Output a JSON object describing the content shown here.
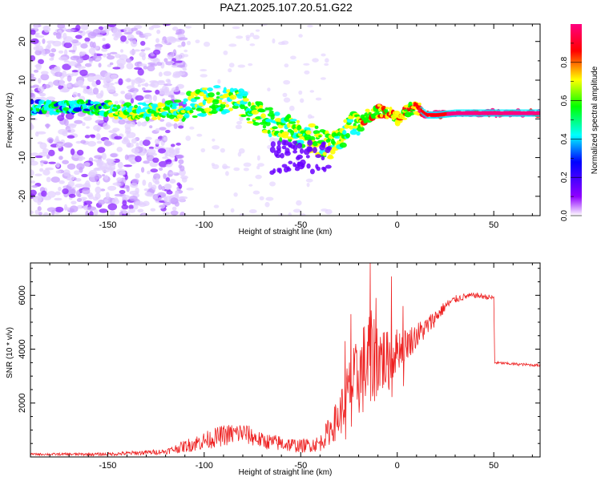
{
  "chart_data": [
    {
      "type": "heatmap",
      "title": "PAZ1.2025.107.20.51.G22",
      "xlabel": "Height of straight line (km)",
      "ylabel": "Frequency (Hz)",
      "xlim": [
        -190,
        74
      ],
      "ylim": [
        -25,
        24.5
      ],
      "xticks": [
        -150,
        -100,
        -50,
        0,
        50
      ],
      "xtick_labels": [
        "-150",
        "-100",
        "-50",
        "0",
        "50"
      ],
      "yticks": [
        -20,
        -10,
        0,
        10,
        20
      ],
      "ytick_labels": [
        "-20",
        "-10",
        "0",
        "10",
        "20"
      ],
      "ridge": {
        "x": [
          -190,
          -160,
          -140,
          -120,
          -105,
          -95,
          -85,
          -78,
          -70,
          -60,
          -50,
          -40,
          -35,
          -30,
          -25,
          -20,
          -15,
          -10,
          -5,
          0,
          5,
          10,
          15,
          20,
          30,
          50,
          74
        ],
        "y": [
          3,
          3,
          2,
          2,
          4,
          5,
          5,
          3,
          0,
          -2,
          -4,
          -6,
          -7,
          -5,
          -2,
          -2,
          1,
          2,
          2,
          0,
          2,
          3,
          1,
          1,
          1.5,
          1.5,
          1.5
        ]
      },
      "colorbar": {
        "label": "Normalized spectral amplitude",
        "range": [
          0,
          1
        ],
        "ticks": [
          0.0,
          0.2,
          0.4,
          0.6,
          0.8
        ],
        "tick_labels": [
          "0.0",
          "0.2",
          "0.4",
          "0.6",
          "0.8"
        ],
        "colors": [
          "#ffffff",
          "#9000ff",
          "#0000ff",
          "#00ffff",
          "#00ff00",
          "#ffff00",
          "#ff0000",
          "#ff0080"
        ]
      }
    },
    {
      "type": "line",
      "xlabel": "Height of straight line (km)",
      "ylabel": "SNR (10 * v/v)",
      "xlim": [
        -190,
        74
      ],
      "ylim": [
        0,
        7200
      ],
      "xticks": [
        -150,
        -100,
        -50,
        0,
        50
      ],
      "xtick_labels": [
        "-150",
        "-100",
        "-50",
        "0",
        "50"
      ],
      "yticks": [
        2000,
        4000,
        6000
      ],
      "ytick_labels": [
        "2000",
        "4000",
        "6000"
      ],
      "color": "#ee2222",
      "envelope": {
        "x": [
          -190,
          -150,
          -120,
          -105,
          -90,
          -80,
          -70,
          -60,
          -50,
          -40,
          -30,
          -25,
          -20,
          -15,
          -10,
          -5,
          0,
          5,
          10,
          15,
          20,
          25,
          30,
          35,
          40,
          45,
          50,
          50.5,
          60,
          74
        ],
        "y": [
          100,
          100,
          200,
          500,
          800,
          900,
          600,
          500,
          400,
          500,
          1500,
          2500,
          3000,
          3500,
          3800,
          3500,
          4000,
          4200,
          4500,
          4800,
          5200,
          5600,
          5850,
          5950,
          6000,
          5950,
          5900,
          3500,
          3450,
          3400
        ],
        "noise": [
          40,
          60,
          100,
          300,
          400,
          400,
          300,
          300,
          250,
          300,
          800,
          1200,
          1500,
          2000,
          1500,
          1200,
          800,
          600,
          500,
          400,
          300,
          200,
          150,
          120,
          100,
          100,
          100,
          50,
          50,
          50
        ]
      },
      "peaks": [
        {
          "x": -27,
          "y": 4300
        },
        {
          "x": -24,
          "y": 5300
        },
        {
          "x": -14,
          "y": 7200
        },
        {
          "x": -11,
          "y": 5900
        },
        {
          "x": -3,
          "y": 6700
        },
        {
          "x": 3,
          "y": 5600
        }
      ]
    }
  ]
}
